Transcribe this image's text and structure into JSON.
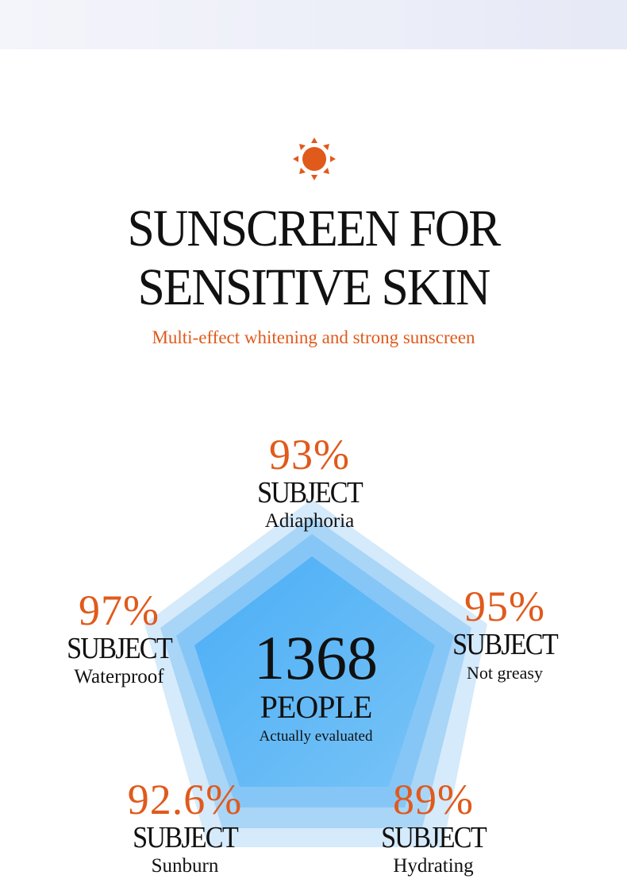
{
  "header": {
    "title_line1": "SUNSCREEN FOR",
    "title_line2": "SENSITIVE SKIN",
    "subtitle": "Multi-effect whitening and strong sunscreen",
    "icon": "sun-icon",
    "accent_color": "#e05a1c"
  },
  "center": {
    "count": "1368",
    "unit": "PEOPLE",
    "caption": "Actually evaluated"
  },
  "stats": [
    {
      "percent": "93%",
      "subject": "SUBJECT",
      "label": "Adiaphoria"
    },
    {
      "percent": "95%",
      "subject": "SUBJECT",
      "label": "Not greasy"
    },
    {
      "percent": "89%",
      "subject": "SUBJECT",
      "label": "Hydrating"
    },
    {
      "percent": "92.6%",
      "subject": "SUBJECT",
      "label": "Sunburn"
    },
    {
      "percent": "97%",
      "subject": "SUBJECT",
      "label": "Waterproof"
    }
  ],
  "colors": {
    "blue_outer": "#d3e9fb",
    "blue_mid": "#a5d3f6",
    "blue_inner": "#5db6f5"
  }
}
